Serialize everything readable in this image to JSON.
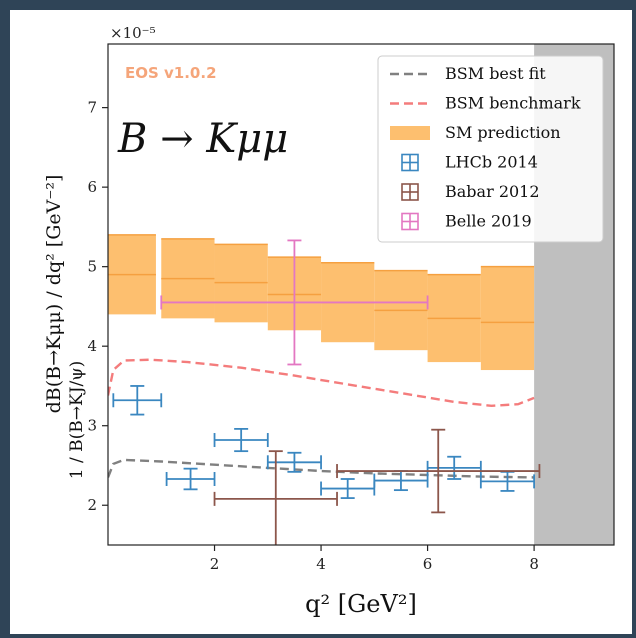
{
  "chart_data": {
    "type": "scatter",
    "watermark": "EOS v1.0.2",
    "process_label": "B → Kμμ",
    "scale_label": "×10⁻⁵",
    "xlabel": "q² [GeV²]",
    "ylabel_main": "dB(B→Kμμ) / dq²  [GeV⁻²]",
    "ylabel_norm": "1 / B(B→KJ/ψ)",
    "xlim": [
      0,
      9.5
    ],
    "ylim": [
      1.5,
      7.8
    ],
    "xticks": [
      2,
      4,
      6,
      8
    ],
    "yticks": [
      2,
      3,
      4,
      5,
      6,
      7
    ],
    "excluded_region": [
      8.0,
      9.5
    ],
    "colors": {
      "bsm_best_fit": "#808080",
      "bsm_benchmark": "#f47c7c",
      "sm": "#fdbf6f",
      "sm_line": "#f5a040",
      "lhcb": "#3a87c0",
      "babar": "#8c564b",
      "belle": "#e377c2",
      "excluded": "#bfbfbf"
    },
    "legend": [
      {
        "key": "bsm_best_fit",
        "label": "BSM best fit",
        "style": "dashed"
      },
      {
        "key": "bsm_benchmark",
        "label": "BSM benchmark",
        "style": "dashed"
      },
      {
        "key": "sm",
        "label": "SM prediction",
        "style": "band"
      },
      {
        "key": "lhcb",
        "label": "LHCb 2014",
        "style": "errorbar"
      },
      {
        "key": "babar",
        "label": "Babar 2012",
        "style": "errorbar"
      },
      {
        "key": "belle",
        "label": "Belle 2019",
        "style": "errorbar"
      }
    ],
    "sm_bins": [
      {
        "x0": 0.0,
        "x1": 0.9,
        "low": 4.4,
        "high": 5.4,
        "central": 4.9
      },
      {
        "x0": 1.0,
        "x1": 2.0,
        "low": 4.35,
        "high": 5.35,
        "central": 4.85
      },
      {
        "x0": 2.0,
        "x1": 3.0,
        "low": 4.3,
        "high": 5.28,
        "central": 4.8
      },
      {
        "x0": 3.0,
        "x1": 4.0,
        "low": 4.2,
        "high": 5.12,
        "central": 4.65
      },
      {
        "x0": 4.0,
        "x1": 5.0,
        "low": 4.05,
        "high": 5.05,
        "central": 4.55
      },
      {
        "x0": 5.0,
        "x1": 6.0,
        "low": 3.95,
        "high": 4.95,
        "central": 4.45
      },
      {
        "x0": 6.0,
        "x1": 7.0,
        "low": 3.8,
        "high": 4.9,
        "central": 4.35
      },
      {
        "x0": 7.0,
        "x1": 8.0,
        "low": 3.7,
        "high": 5.0,
        "central": 4.3
      }
    ],
    "bsm_benchmark_curve": [
      [
        0.0,
        3.38
      ],
      [
        0.1,
        3.7
      ],
      [
        0.3,
        3.82
      ],
      [
        0.8,
        3.83
      ],
      [
        1.5,
        3.8
      ],
      [
        2.5,
        3.73
      ],
      [
        3.5,
        3.63
      ],
      [
        4.5,
        3.52
      ],
      [
        5.5,
        3.41
      ],
      [
        6.5,
        3.3
      ],
      [
        7.2,
        3.25
      ],
      [
        7.7,
        3.27
      ],
      [
        8.0,
        3.35
      ]
    ],
    "bsm_best_fit_curve": [
      [
        0.0,
        2.35
      ],
      [
        0.1,
        2.52
      ],
      [
        0.3,
        2.57
      ],
      [
        1.0,
        2.55
      ],
      [
        2.0,
        2.51
      ],
      [
        3.0,
        2.47
      ],
      [
        4.0,
        2.43
      ],
      [
        5.0,
        2.4
      ],
      [
        6.0,
        2.38
      ],
      [
        7.0,
        2.36
      ],
      [
        8.0,
        2.35
      ]
    ],
    "lhcb_2014": [
      {
        "x": 0.55,
        "xerr": 0.45,
        "y": 3.32,
        "yerr": 0.18
      },
      {
        "x": 1.55,
        "xerr": 0.45,
        "y": 2.33,
        "yerr": 0.13
      },
      {
        "x": 2.5,
        "xerr": 0.5,
        "y": 2.82,
        "yerr": 0.14
      },
      {
        "x": 3.5,
        "xerr": 0.5,
        "y": 2.54,
        "yerr": 0.12
      },
      {
        "x": 4.5,
        "xerr": 0.5,
        "y": 2.21,
        "yerr": 0.12
      },
      {
        "x": 5.5,
        "xerr": 0.5,
        "y": 2.31,
        "yerr": 0.12
      },
      {
        "x": 6.5,
        "xerr": 0.5,
        "y": 2.47,
        "yerr": 0.14
      },
      {
        "x": 7.5,
        "xerr": 0.5,
        "y": 2.3,
        "yerr": 0.12
      }
    ],
    "babar_2012": [
      {
        "x": 3.15,
        "xerr": 1.15,
        "y": 2.08,
        "yerr": 0.6
      },
      {
        "x": 6.2,
        "xerr": 1.9,
        "y": 2.43,
        "yerr": 0.52
      }
    ],
    "belle_2019": [
      {
        "x": 3.5,
        "xerr": 2.5,
        "y": 4.55,
        "yerr": 0.78
      }
    ]
  }
}
